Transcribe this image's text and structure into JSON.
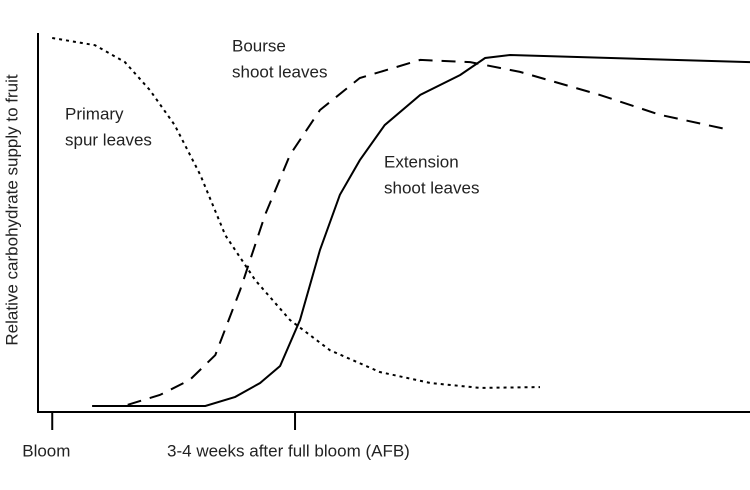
{
  "chart_data": {
    "type": "line",
    "y_label": "Relative carbohydrate supply to fruit",
    "xlim": [
      0,
      100
    ],
    "ylim": [
      0,
      100
    ],
    "xticks": [
      {
        "value": 2,
        "label": "Bloom"
      },
      {
        "value": 36.1,
        "label": "3-4 weeks after full bloom (AFB)"
      }
    ],
    "series": [
      {
        "label": [
          "Primary",
          "spur leaves"
        ],
        "color": "#000000",
        "line_style": "dotted",
        "x": [
          2.0,
          8.0,
          12.2,
          15.7,
          19.2,
          22.8,
          26.3,
          30.5,
          35.4,
          41.0,
          48.0,
          55.1,
          62.1,
          70.5
        ],
        "values": [
          99.2,
          97.3,
          92.8,
          85.4,
          76.1,
          62.9,
          46.9,
          35.0,
          24.4,
          16.4,
          10.6,
          7.7,
          6.4,
          6.6
        ]
      },
      {
        "label": [
          "Bourse",
          "shoot leaves"
        ],
        "color": "#000000",
        "line_style": "dashed",
        "x": [
          12.6,
          17.1,
          21.3,
          24.9,
          28.4,
          31.9,
          35.4,
          39.6,
          45.2,
          53.7,
          60.7,
          67.7,
          78.9,
          87.4,
          97.2
        ],
        "values": [
          1.9,
          4.5,
          8.5,
          15.1,
          32.4,
          52.3,
          68.2,
          80.1,
          88.6,
          93.4,
          92.8,
          90.2,
          84.1,
          78.8,
          74.8
        ]
      },
      {
        "label": [
          "Extension",
          "shoot leaves"
        ],
        "color": "#000000",
        "line_style": "solid",
        "x": [
          7.6,
          23.5,
          27.7,
          31.2,
          34.0,
          36.8,
          39.6,
          42.4,
          45.2,
          48.7,
          53.7,
          59.3,
          62.8,
          66.3,
          100
        ],
        "values": [
          1.6,
          1.6,
          4.0,
          7.7,
          12.2,
          24.4,
          43.0,
          57.6,
          66.8,
          76.1,
          84.1,
          89.4,
          93.9,
          94.7,
          92.8
        ]
      }
    ]
  }
}
